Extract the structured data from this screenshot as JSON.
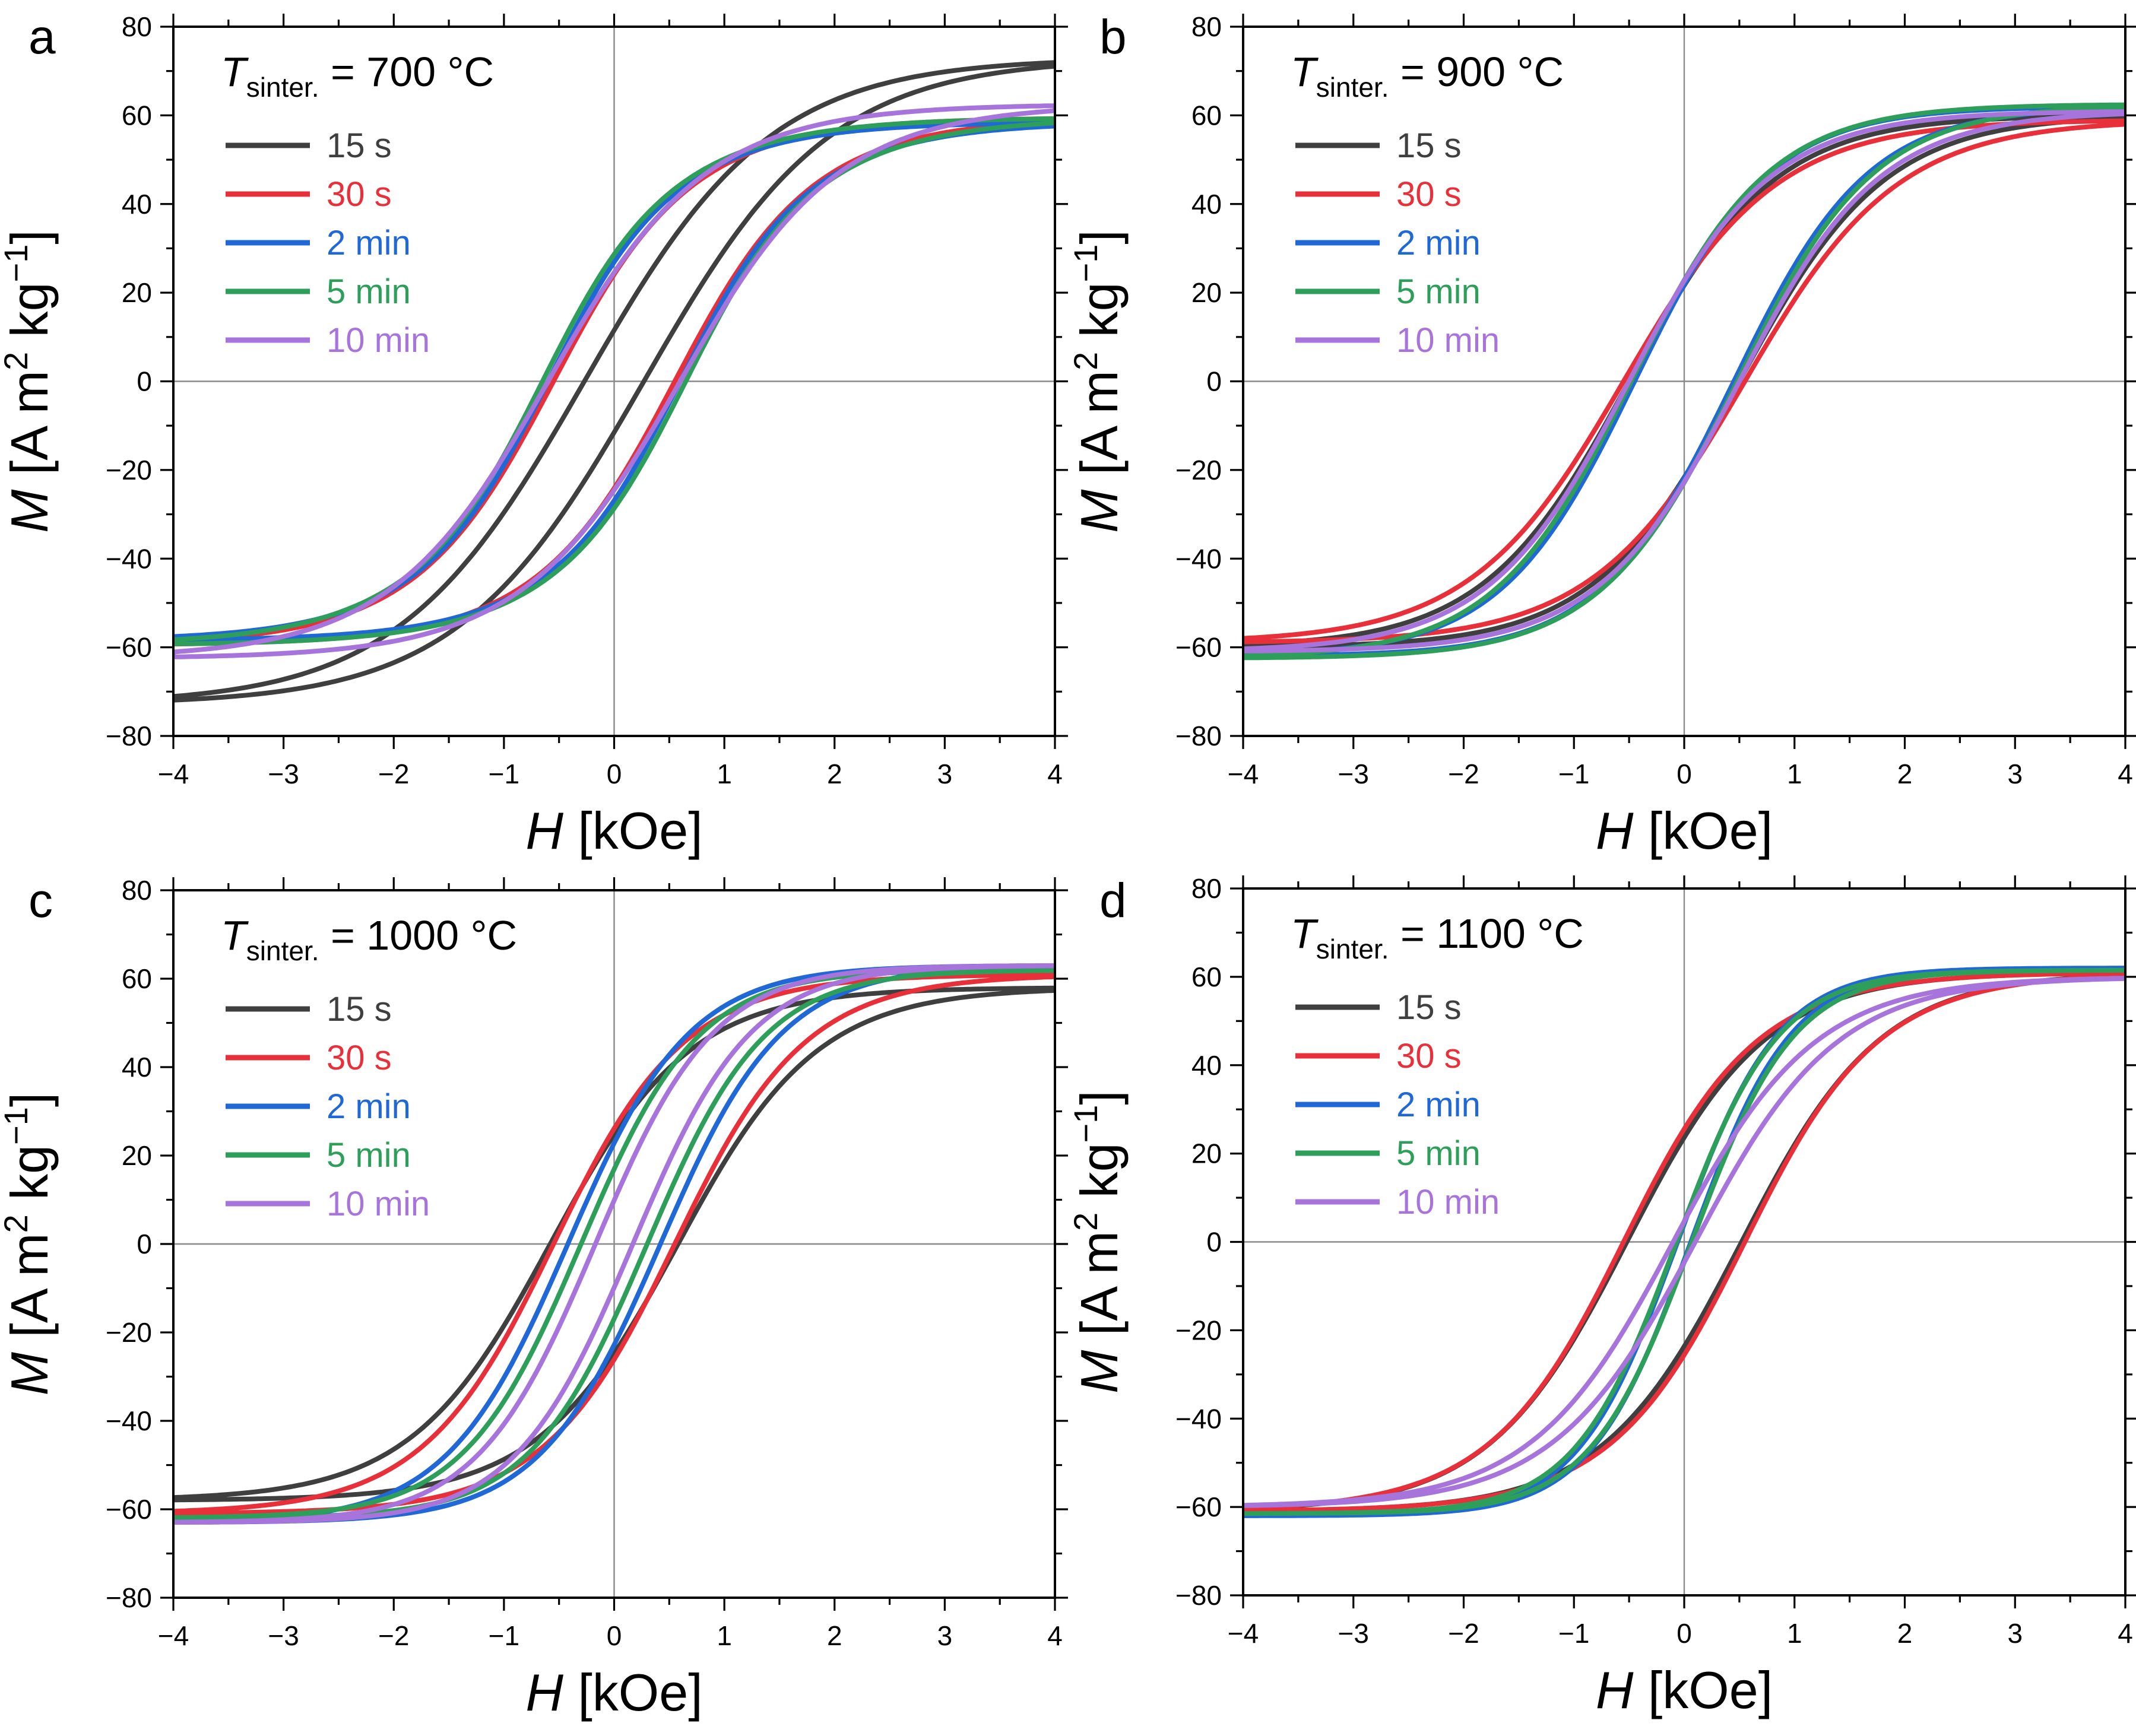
{
  "figure": {
    "colors": {
      "15 s": "#3f3f3f",
      "30 s": "#e8303a",
      "2 min": "#1f68d6",
      "5 min": "#2e9e5b",
      "10 min": "#a774dc"
    },
    "axes_color": "#000000",
    "zero_line_color": "#8a8a8a"
  },
  "chart_data": [
    {
      "panel": "a",
      "type": "line",
      "annotation": {
        "symbol": "T",
        "subscript": "sinter.",
        "value": " = 700 °C"
      },
      "xlabel": {
        "italic": "H",
        "unit": "  [kOe]"
      },
      "ylabel": {
        "italic": "M",
        "unit": "[A m",
        "sup1": "2",
        "unit2": " kg",
        "sup2": "−1",
        "close": "]"
      },
      "xlim": [
        -4,
        4
      ],
      "ylim": [
        -80,
        80
      ],
      "xticks": [
        -4,
        -3,
        -2,
        -1,
        0,
        1,
        2,
        3,
        4
      ],
      "xtick_labels": [
        "−4",
        "−3",
        "−2",
        "−1",
        "0",
        "1",
        "2",
        "3",
        "4"
      ],
      "yticks": [
        -80,
        -60,
        -40,
        -20,
        0,
        20,
        40,
        60,
        80
      ],
      "ytick_labels": [
        "−80",
        "−60",
        "−40",
        "−20",
        "0",
        "20",
        "40",
        "60",
        "80"
      ],
      "legend_position": "top-left",
      "series": [
        {
          "name": "15 s",
          "Ms": 72.5,
          "Mr": 12.0,
          "Hc": 0.27,
          "Ha": 1.8
        },
        {
          "name": "30 s",
          "Ms": 59.5,
          "Mr": 19.5,
          "Hc": 0.55,
          "Ha": 1.0
        },
        {
          "name": "2 min",
          "Ms": 58.5,
          "Mr": 21.0,
          "Hc": 0.6,
          "Ha": 0.9
        },
        {
          "name": "5 min",
          "Ms": 59.5,
          "Mr": 22.0,
          "Hc": 0.65,
          "Ha": 0.9
        },
        {
          "name": "10 min",
          "Ms": 62.5,
          "Mr": 21.0,
          "Hc": 0.6,
          "Ha": 1.2
        }
      ]
    },
    {
      "panel": "b",
      "type": "line",
      "annotation": {
        "symbol": "T",
        "subscript": "sinter.",
        "value": " = 900 °C"
      },
      "xlabel": {
        "italic": "H",
        "unit": " [kOe]"
      },
      "ylabel": {
        "italic": "M",
        "unit": "[A m",
        "sup1": "2",
        "unit2": " kg",
        "sup2": "−1",
        "close": "]"
      },
      "xlim": [
        -4,
        4
      ],
      "ylim": [
        -80,
        80
      ],
      "xticks": [
        -4,
        -3,
        -2,
        -1,
        0,
        1,
        2,
        3,
        4
      ],
      "xtick_labels": [
        "−4",
        "−3",
        "−2",
        "−1",
        "0",
        "1",
        "2",
        "3",
        "4"
      ],
      "yticks": [
        -80,
        -60,
        -40,
        -20,
        0,
        20,
        40,
        60,
        80
      ],
      "ytick_labels": [
        "−80",
        "−60",
        "−40",
        "−20",
        "0",
        "20",
        "40",
        "60",
        "80"
      ],
      "legend_position": "top-left",
      "series": [
        {
          "name": "15 s",
          "Ms": 60.0,
          "Mr": 20.0,
          "Hc": 0.5,
          "Ha": 1.2
        },
        {
          "name": "30 s",
          "Ms": 59.0,
          "Mr": 19.5,
          "Hc": 0.55,
          "Ha": 1.2
        },
        {
          "name": "2 min",
          "Ms": 62.0,
          "Mr": 20.0,
          "Hc": 0.45,
          "Ha": 1.1
        },
        {
          "name": "5 min",
          "Ms": 62.5,
          "Mr": 20.5,
          "Hc": 0.48,
          "Ha": 1.1
        },
        {
          "name": "10 min",
          "Ms": 61.0,
          "Mr": 20.0,
          "Hc": 0.5,
          "Ha": 1.1
        }
      ]
    },
    {
      "panel": "c",
      "type": "line",
      "annotation": {
        "symbol": "T",
        "subscript": "sinter.",
        "value": " = 1000 °C"
      },
      "xlabel": {
        "italic": "H",
        "unit": " [kOe]"
      },
      "ylabel": {
        "italic": "M",
        "unit": "[A m",
        "sup1": "2",
        "unit2": " kg",
        "sup2": "−1",
        "close": "]"
      },
      "xlim": [
        -4,
        4
      ],
      "ylim": [
        -80,
        80
      ],
      "xticks": [
        -4,
        -3,
        -2,
        -1,
        0,
        1,
        2,
        3,
        4
      ],
      "xtick_labels": [
        "−4",
        "−3",
        "−2",
        "−1",
        "0",
        "1",
        "2",
        "3",
        "4"
      ],
      "yticks": [
        -80,
        -60,
        -40,
        -20,
        0,
        20,
        40,
        60,
        80
      ],
      "ytick_labels": [
        "−80",
        "−60",
        "−40",
        "−20",
        "0",
        "20",
        "40",
        "60",
        "80"
      ],
      "legend_position": "top-left",
      "series": [
        {
          "name": "15 s",
          "Ms": 58.0,
          "Mr": 22.0,
          "Hc": 0.58,
          "Ha": 1.1
        },
        {
          "name": "30 s",
          "Ms": 61.0,
          "Mr": 22.5,
          "Hc": 0.55,
          "Ha": 1.0
        },
        {
          "name": "2 min",
          "Ms": 63.0,
          "Mr": 21.0,
          "Hc": 0.42,
          "Ha": 1.0
        },
        {
          "name": "5 min",
          "Ms": 62.0,
          "Mr": 16.0,
          "Hc": 0.3,
          "Ha": 1.0
        },
        {
          "name": "10 min",
          "Ms": 63.0,
          "Mr": 10.0,
          "Hc": 0.17,
          "Ha": 1.1
        }
      ]
    },
    {
      "panel": "d",
      "type": "line",
      "annotation": {
        "symbol": "T",
        "subscript": "sinter.",
        "value": " = 1100 °C"
      },
      "xlabel": {
        "italic": "H",
        "unit": " [kOe]"
      },
      "ylabel": {
        "italic": "M",
        "unit": "[A m",
        "sup1": "2",
        "unit2": " kg",
        "sup2": "−1",
        "close": "]"
      },
      "xlim": [
        -4,
        4
      ],
      "ylim": [
        -80,
        80
      ],
      "xticks": [
        -4,
        -3,
        -2,
        -1,
        0,
        1,
        2,
        3,
        4
      ],
      "xtick_labels": [
        "−4",
        "−3",
        "−2",
        "−1",
        "0",
        "1",
        "2",
        "3",
        "4"
      ],
      "yticks": [
        -80,
        -60,
        -40,
        -20,
        0,
        20,
        40,
        60,
        80
      ],
      "ytick_labels": [
        "−80",
        "−60",
        "−40",
        "−20",
        "0",
        "20",
        "40",
        "60",
        "80"
      ],
      "legend_position": "top-left",
      "series": [
        {
          "name": "15 s",
          "Ms": 61.0,
          "Mr": 21.0,
          "Hc": 0.52,
          "Ha": 1.1
        },
        {
          "name": "30 s",
          "Ms": 61.0,
          "Mr": 21.5,
          "Hc": 0.55,
          "Ha": 1.0
        },
        {
          "name": "2 min",
          "Ms": 62.0,
          "Mr": 4.0,
          "Hc": 0.06,
          "Ha": 0.9
        },
        {
          "name": "5 min",
          "Ms": 61.5,
          "Mr": 4.5,
          "Hc": 0.07,
          "Ha": 0.9
        },
        {
          "name": "10 min",
          "Ms": 60.0,
          "Mr": 4.0,
          "Hc": 0.1,
          "Ha": 1.1
        }
      ]
    }
  ]
}
